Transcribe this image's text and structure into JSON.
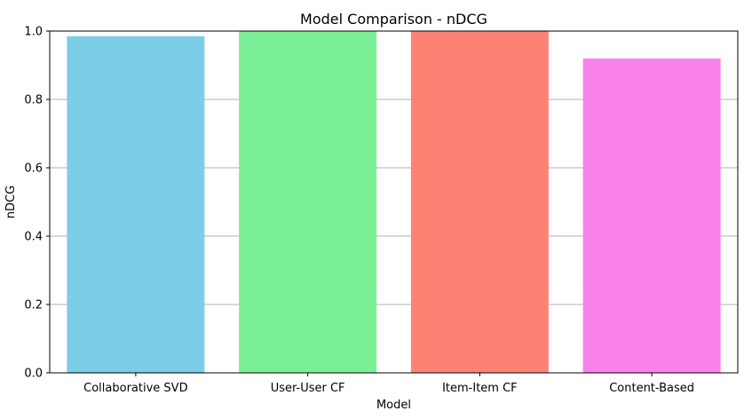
{
  "chart_data": {
    "type": "bar",
    "title": "Model Comparison - nDCG",
    "xlabel": "Model",
    "ylabel": "nDCG",
    "categories": [
      "Collaborative SVD",
      "User-User CF",
      "Item-Item CF",
      "Content-Based"
    ],
    "values": [
      0.985,
      1.0,
      1.0,
      0.92
    ],
    "colors": [
      "#7ecde8",
      "#7bef96",
      "#fe8274",
      "#f982ea"
    ],
    "ylim": [
      0,
      1.0
    ],
    "yticks": [
      "0.0",
      "0.2",
      "0.4",
      "0.6",
      "0.8",
      "1.0"
    ],
    "grid": "y-major",
    "legend": "none"
  }
}
